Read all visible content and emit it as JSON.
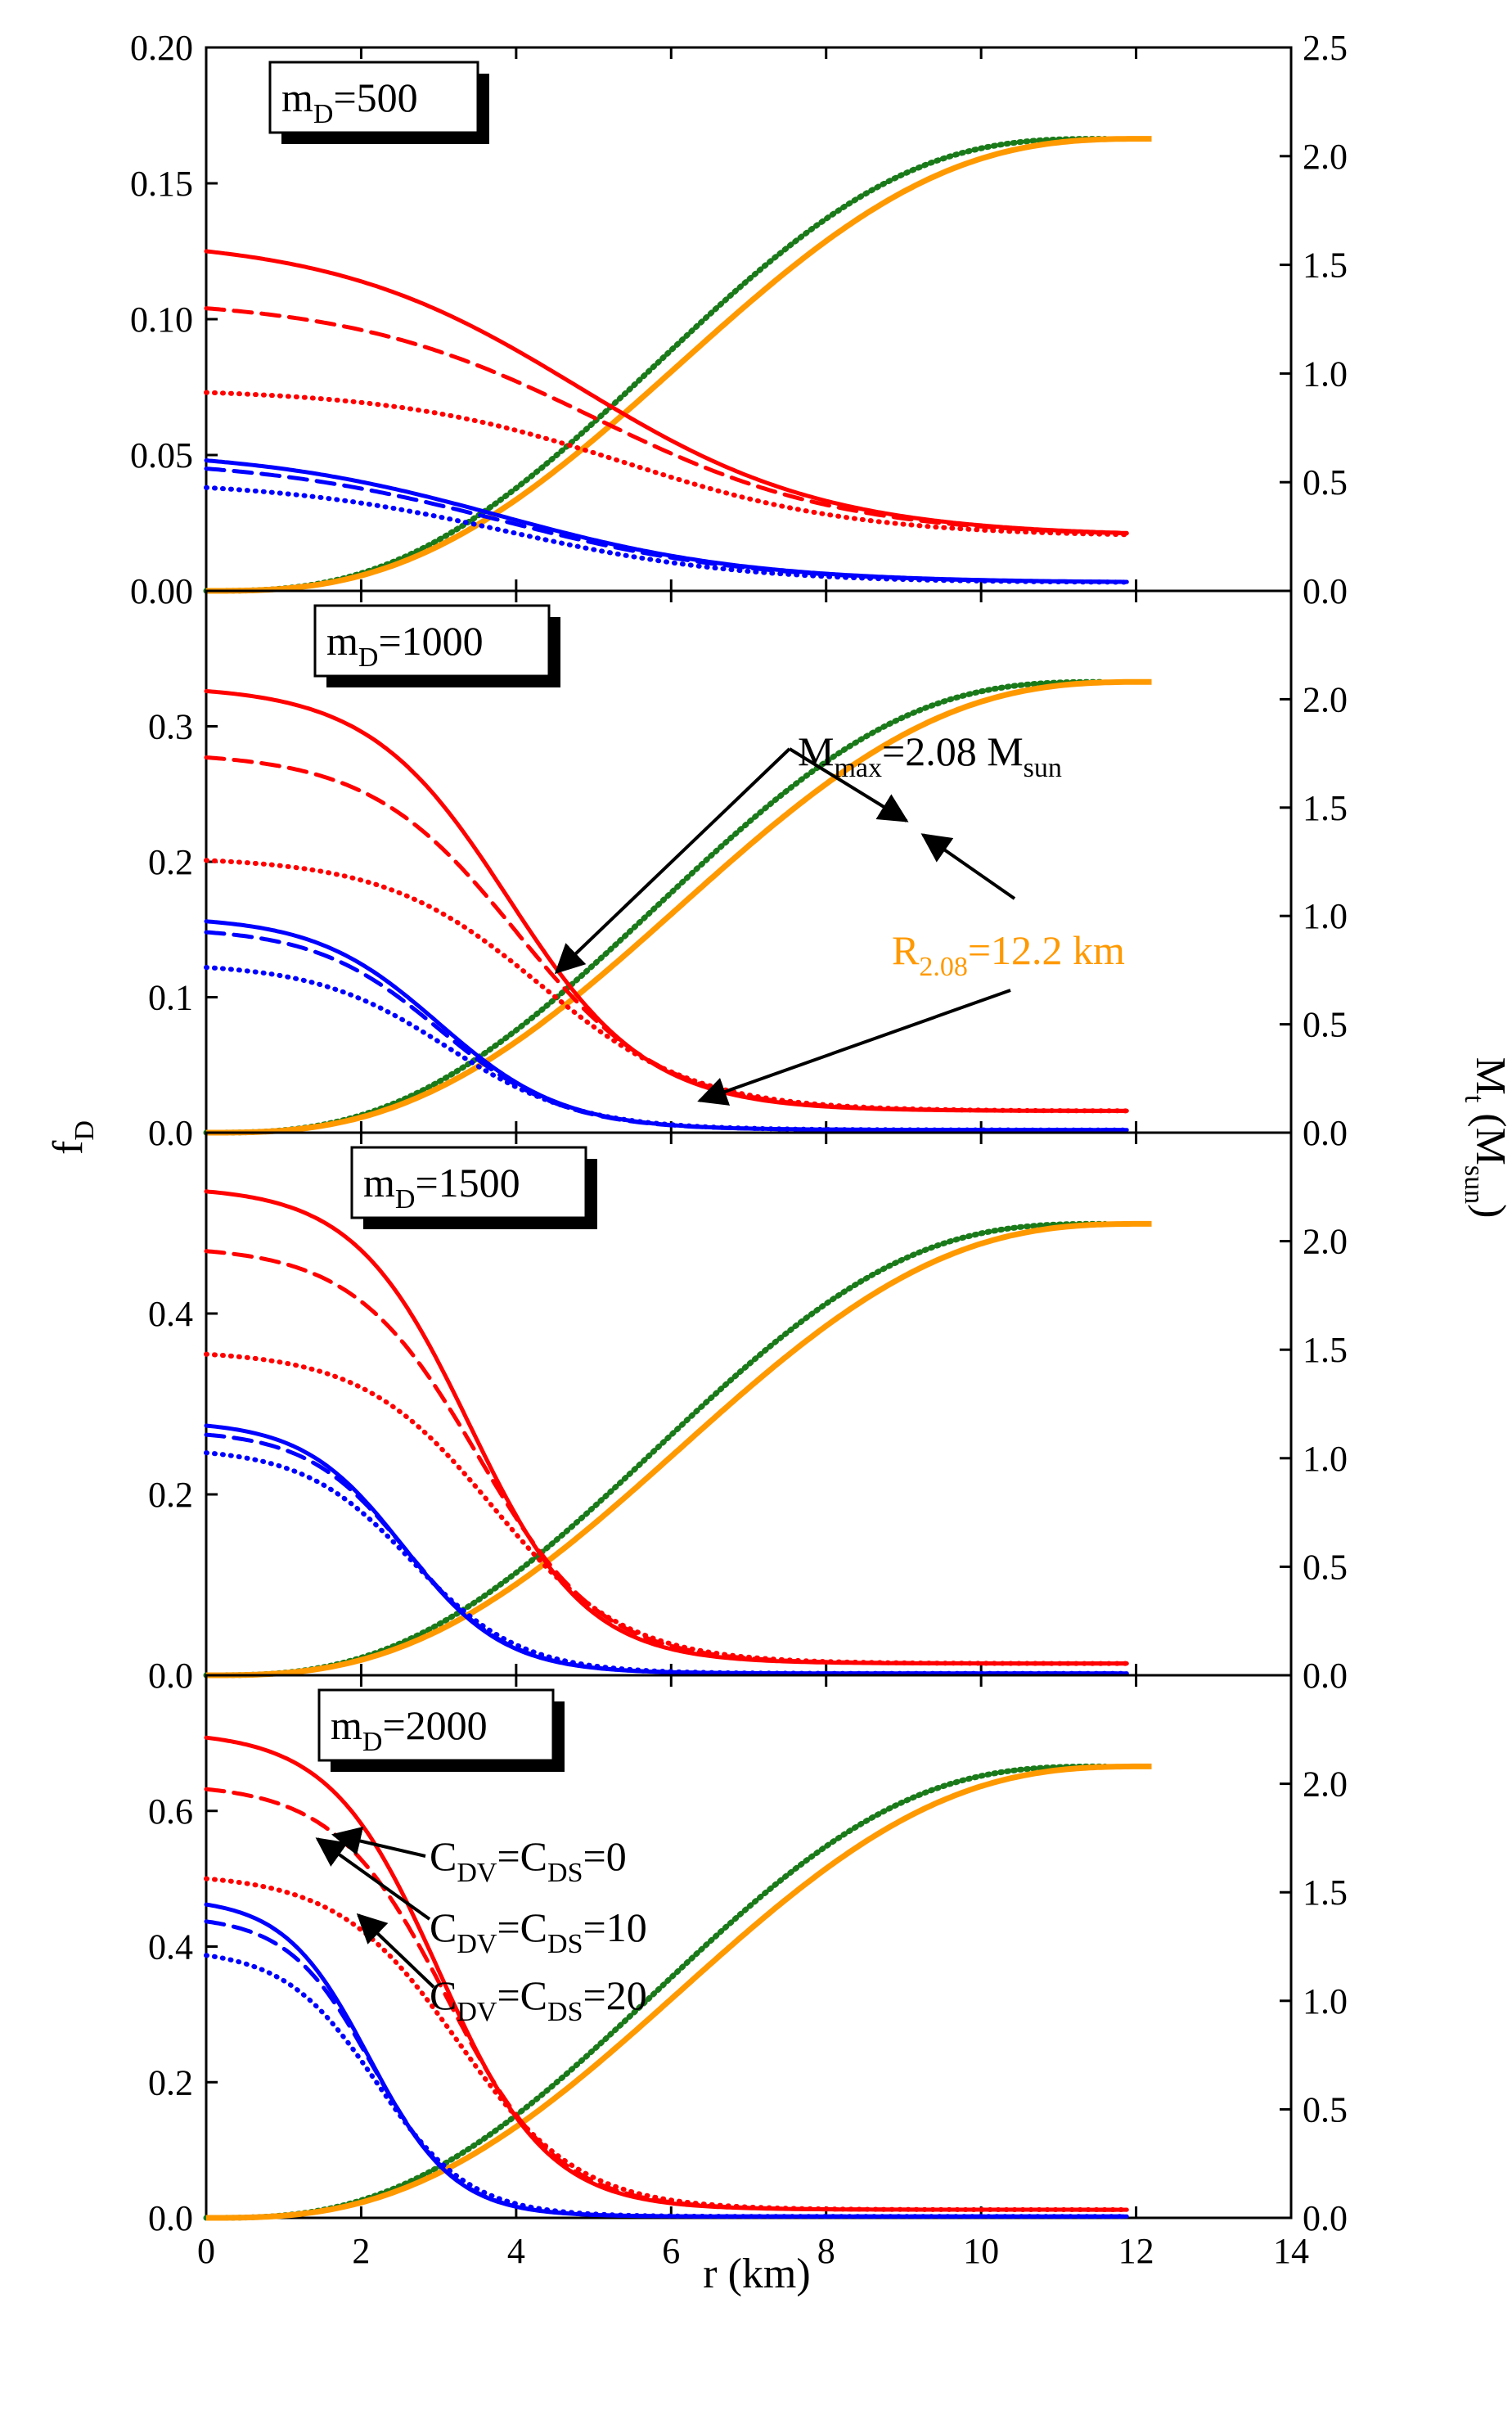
{
  "figure": {
    "xlabel": "r (km)",
    "ylabel_left": "f",
    "ylabel_left_sub": "D",
    "ylabel_right": "M",
    "ylabel_right_sub": "t",
    "ylabel_right_unit": " (M",
    "ylabel_right_unit_sub": "sun",
    "ylabel_right_close": ")"
  },
  "colors": {
    "red": "#ff0000",
    "blue": "#0000ff",
    "green": "#1a7a1a",
    "orange": "#ff9900",
    "axis": "#000000"
  },
  "annotations": {
    "mmax_main": "M",
    "mmax_sub": "max",
    "mmax_value": "=2.08 M",
    "mmax_unit_sub": "sun",
    "r_main": "R",
    "r_sub": "2.08",
    "r_value": "=12.2 km",
    "legend": [
      {
        "c1": "C",
        "s1": "DV",
        "eq": "=C",
        "s2": "DS",
        "val": "=0",
        "style": "solid"
      },
      {
        "c1": "C",
        "s1": "DV",
        "eq": "=C",
        "s2": "DS",
        "val": "=10",
        "style": "dash"
      },
      {
        "c1": "C",
        "s1": "DV",
        "eq": "=C",
        "s2": "DS",
        "val": "=20",
        "style": "dot"
      }
    ]
  },
  "chart_data": [
    {
      "type": "line",
      "panel_label_main": "m",
      "panel_label_sub": "D",
      "panel_label_value": "=500",
      "xlim": [
        0,
        14
      ],
      "x_ticks": [
        0,
        2,
        4,
        6,
        8,
        10,
        12,
        14
      ],
      "x_tick_labels": [
        "0",
        "2",
        "4",
        "6",
        "8",
        "10",
        "12",
        "14"
      ],
      "ylim_left": [
        0,
        0.2
      ],
      "y_ticks_left": [
        "0.00",
        "0.05",
        "0.10",
        "0.15",
        "0.20"
      ],
      "ylim_right": [
        0,
        2.5
      ],
      "y_ticks_right": [
        "0.0",
        "0.5",
        "1.0",
        "1.5",
        "2.0",
        "2.5"
      ],
      "fd_series": [
        {
          "name": "red C=0",
          "color": "red",
          "style": "solid",
          "axis": "left",
          "f0": 0.125,
          "f_end": 0.02,
          "r_half": 4.8,
          "width": 1.6
        },
        {
          "name": "red C=10",
          "color": "red",
          "style": "dash",
          "axis": "left",
          "f0": 0.104,
          "f_end": 0.02,
          "r_half": 5.0,
          "width": 1.6
        },
        {
          "name": "red C=20",
          "color": "red",
          "style": "dot",
          "axis": "left",
          "f0": 0.073,
          "f_end": 0.02,
          "r_half": 5.4,
          "width": 1.5
        },
        {
          "name": "blue C=0",
          "color": "blue",
          "style": "solid",
          "axis": "left",
          "f0": 0.048,
          "f_end": 0.003,
          "r_half": 3.8,
          "width": 1.6
        },
        {
          "name": "blue C=10",
          "color": "blue",
          "style": "dash",
          "axis": "left",
          "f0": 0.045,
          "f_end": 0.003,
          "r_half": 3.8,
          "width": 1.6
        },
        {
          "name": "blue C=20",
          "color": "blue",
          "style": "dot",
          "axis": "left",
          "f0": 0.038,
          "f_end": 0.003,
          "r_half": 3.9,
          "width": 1.5
        }
      ],
      "mass_series": [
        {
          "name": "green",
          "color": "green",
          "axis": "right",
          "mmax": 2.08,
          "r_end": 11.6
        },
        {
          "name": "orange",
          "color": "orange",
          "axis": "right",
          "mmax": 2.08,
          "r_end": 12.2
        }
      ]
    },
    {
      "type": "line",
      "panel_label_main": "m",
      "panel_label_sub": "D",
      "panel_label_value": "=1000",
      "xlim": [
        0,
        14
      ],
      "ylim_left": [
        0,
        0.4
      ],
      "y_ticks_left": [
        "0.0",
        "0.1",
        "0.2",
        "0.3"
      ],
      "ylim_right": [
        0,
        2.5
      ],
      "y_ticks_right": [
        "0.0",
        "0.5",
        "1.0",
        "1.5",
        "2.0"
      ],
      "fd_series": [
        {
          "name": "red C=0",
          "color": "red",
          "style": "solid",
          "axis": "left",
          "f0": 0.326,
          "f_end": 0.016,
          "r_half": 3.9,
          "width": 0.9
        },
        {
          "name": "red C=10",
          "color": "red",
          "style": "dash",
          "axis": "left",
          "f0": 0.277,
          "f_end": 0.016,
          "r_half": 4.0,
          "width": 0.95
        },
        {
          "name": "red C=20",
          "color": "red",
          "style": "dot",
          "axis": "left",
          "f0": 0.201,
          "f_end": 0.016,
          "r_half": 4.3,
          "width": 1.0
        },
        {
          "name": "blue C=0",
          "color": "blue",
          "style": "solid",
          "axis": "left",
          "f0": 0.156,
          "f_end": 0.002,
          "r_half": 3.0,
          "width": 0.8
        },
        {
          "name": "blue C=10",
          "color": "blue",
          "style": "dash",
          "axis": "left",
          "f0": 0.148,
          "f_end": 0.002,
          "r_half": 3.0,
          "width": 0.8
        },
        {
          "name": "blue C=20",
          "color": "blue",
          "style": "dot",
          "axis": "left",
          "f0": 0.122,
          "f_end": 0.002,
          "r_half": 3.1,
          "width": 0.85
        }
      ],
      "mass_series": [
        {
          "name": "green",
          "color": "green",
          "axis": "right",
          "mmax": 2.08,
          "r_end": 11.6
        },
        {
          "name": "orange",
          "color": "orange",
          "axis": "right",
          "mmax": 2.08,
          "r_end": 12.2
        }
      ]
    },
    {
      "type": "line",
      "panel_label_main": "m",
      "panel_label_sub": "D",
      "panel_label_value": "=1500",
      "xlim": [
        0,
        14
      ],
      "ylim_left": [
        0,
        0.6
      ],
      "y_ticks_left": [
        "0.0",
        "0.2",
        "0.4"
      ],
      "ylim_right": [
        0,
        2.5
      ],
      "y_ticks_right": [
        "0.0",
        "0.5",
        "1.0",
        "1.5",
        "2.0"
      ],
      "fd_series": [
        {
          "name": "red C=0",
          "color": "red",
          "style": "solid",
          "axis": "left",
          "f0": 0.535,
          "f_end": 0.013,
          "r_half": 3.4,
          "width": 0.75
        },
        {
          "name": "red C=10",
          "color": "red",
          "style": "dash",
          "axis": "left",
          "f0": 0.469,
          "f_end": 0.013,
          "r_half": 3.5,
          "width": 0.8
        },
        {
          "name": "red C=20",
          "color": "red",
          "style": "dot",
          "axis": "left",
          "f0": 0.355,
          "f_end": 0.013,
          "r_half": 3.7,
          "width": 0.85
        },
        {
          "name": "blue C=0",
          "color": "blue",
          "style": "solid",
          "axis": "left",
          "f0": 0.276,
          "f_end": 0.002,
          "r_half": 2.55,
          "width": 0.65
        },
        {
          "name": "blue C=10",
          "color": "blue",
          "style": "dash",
          "axis": "left",
          "f0": 0.266,
          "f_end": 0.002,
          "r_half": 2.6,
          "width": 0.65
        },
        {
          "name": "blue C=20",
          "color": "blue",
          "style": "dot",
          "axis": "left",
          "f0": 0.246,
          "f_end": 0.002,
          "r_half": 2.65,
          "width": 0.7
        }
      ],
      "mass_series": [
        {
          "name": "green",
          "color": "green",
          "axis": "right",
          "mmax": 2.08,
          "r_end": 11.6
        },
        {
          "name": "orange",
          "color": "orange",
          "axis": "right",
          "mmax": 2.08,
          "r_end": 12.2
        }
      ]
    },
    {
      "type": "line",
      "panel_label_main": "m",
      "panel_label_sub": "D",
      "panel_label_value": "=2000",
      "xlim": [
        0,
        14
      ],
      "ylim_left": [
        0,
        0.8
      ],
      "y_ticks_left": [
        "0.0",
        "0.2",
        "0.4",
        "0.6"
      ],
      "ylim_right": [
        0,
        2.5
      ],
      "y_ticks_right": [
        "0.0",
        "0.5",
        "1.0",
        "1.5",
        "2.0"
      ],
      "fd_series": [
        {
          "name": "red C=0",
          "color": "red",
          "style": "solid",
          "axis": "left",
          "f0": 0.708,
          "f_end": 0.012,
          "r_half": 3.0,
          "width": 0.7
        },
        {
          "name": "red C=10",
          "color": "red",
          "style": "dash",
          "axis": "left",
          "f0": 0.632,
          "f_end": 0.012,
          "r_half": 3.1,
          "width": 0.72
        },
        {
          "name": "red C=20",
          "color": "red",
          "style": "dot",
          "axis": "left",
          "f0": 0.5,
          "f_end": 0.012,
          "r_half": 3.25,
          "width": 0.78
        },
        {
          "name": "blue C=0",
          "color": "blue",
          "style": "solid",
          "axis": "left",
          "f0": 0.462,
          "f_end": 0.002,
          "r_half": 2.1,
          "width": 0.55
        },
        {
          "name": "blue C=10",
          "color": "blue",
          "style": "dash",
          "axis": "left",
          "f0": 0.437,
          "f_end": 0.002,
          "r_half": 2.15,
          "width": 0.55
        },
        {
          "name": "blue C=20",
          "color": "blue",
          "style": "dot",
          "axis": "left",
          "f0": 0.387,
          "f_end": 0.002,
          "r_half": 2.2,
          "width": 0.6
        }
      ],
      "mass_series": [
        {
          "name": "green",
          "color": "green",
          "axis": "right",
          "mmax": 2.08,
          "r_end": 11.6
        },
        {
          "name": "orange",
          "color": "orange",
          "axis": "right",
          "mmax": 2.08,
          "r_end": 12.2
        }
      ]
    }
  ]
}
